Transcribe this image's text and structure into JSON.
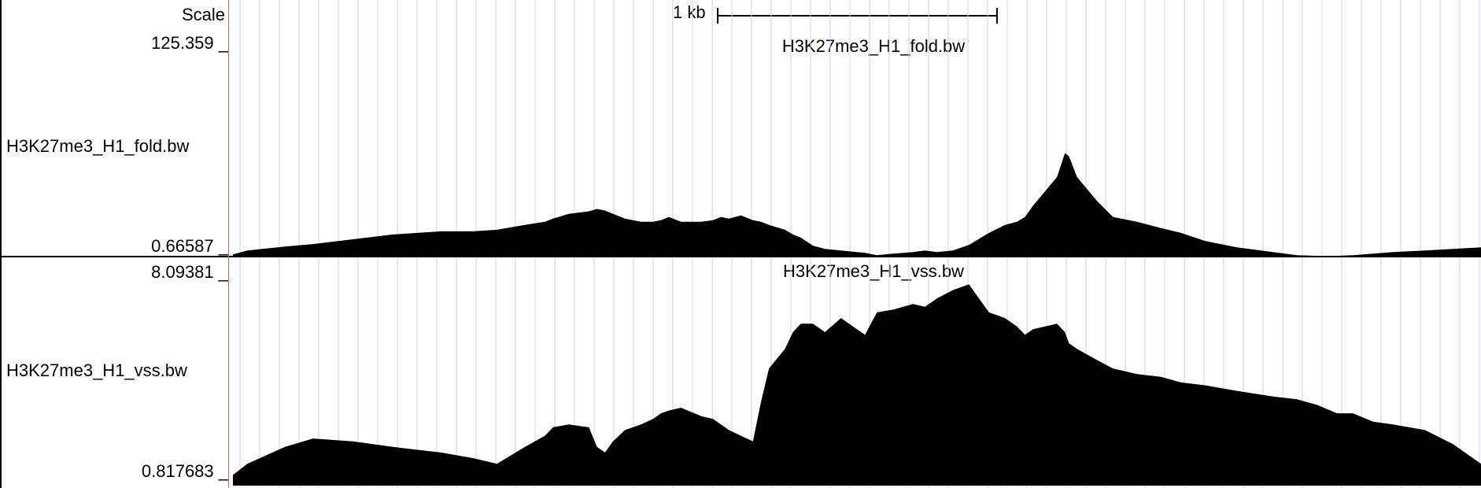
{
  "scale": {
    "label": "Scale",
    "bar_label": "1 kb"
  },
  "tracks": [
    {
      "name": "H3K27me3_H1_fold.bw",
      "title": "H3K27me3_H1_fold.bw",
      "max_label": "125.359 _",
      "min_label": "0.66587 _",
      "range": [
        0.66587,
        125.359
      ]
    },
    {
      "name": "H3K27me3_H1_vss.bw",
      "title": "H3K27me3_H1_vss.bw",
      "max_label": "8.09381 _",
      "min_label": "0.817683 _",
      "range": [
        0.817683,
        8.09381
      ]
    }
  ],
  "colors": {
    "signal": "#000000",
    "grid": "#ccccff",
    "left_border": "#e06666"
  },
  "chart_data": [
    {
      "type": "area",
      "title": "H3K27me3_H1_fold.bw",
      "x_unit": "bp",
      "x": [
        0,
        18,
        65,
        100,
        150,
        200,
        260,
        300,
        330,
        365,
        390,
        400,
        420,
        445,
        455,
        465,
        475,
        490,
        510,
        525,
        535,
        545,
        560,
        585,
        600,
        610,
        620,
        635,
        650,
        660,
        670,
        690,
        700,
        710,
        725,
        740,
        760,
        790,
        805,
        825,
        850,
        865,
        880,
        900,
        920,
        935,
        945,
        965,
        980,
        990,
        1000,
        1030,
        1040,
        1045,
        1055,
        1080,
        1100,
        1130,
        1160,
        1185,
        1215,
        1255,
        1300,
        1330,
        1355,
        1380,
        1400,
        1425,
        1450,
        1490,
        1525,
        1560
      ],
      "y": [
        1.5,
        4,
        6.5,
        8,
        11,
        14,
        16,
        16,
        17,
        20,
        22,
        24,
        27,
        28.5,
        30,
        29,
        27,
        24,
        22,
        22,
        23,
        25,
        22,
        22,
        23,
        25,
        24,
        26,
        23,
        22,
        20,
        17,
        14,
        12,
        7,
        5,
        4,
        2.5,
        1,
        2,
        3,
        4,
        3,
        4,
        7.5,
        12,
        15,
        20,
        22,
        25,
        32,
        50,
        65,
        63,
        50,
        35,
        25,
        22,
        18,
        15,
        10,
        6,
        3,
        1,
        0,
        0,
        1,
        2,
        3,
        4,
        5,
        6
      ]
    },
    {
      "type": "area",
      "title": "H3K27me3_H1_vss.bw",
      "x_unit": "bp",
      "x": [
        0,
        18,
        65,
        100,
        150,
        200,
        260,
        300,
        330,
        365,
        390,
        400,
        420,
        445,
        455,
        465,
        475,
        490,
        510,
        525,
        535,
        545,
        560,
        585,
        600,
        610,
        620,
        635,
        650,
        660,
        670,
        690,
        700,
        710,
        725,
        740,
        760,
        790,
        805,
        825,
        850,
        865,
        880,
        900,
        920,
        935,
        945,
        965,
        980,
        990,
        1000,
        1030,
        1040,
        1045,
        1055,
        1080,
        1100,
        1130,
        1160,
        1185,
        1215,
        1255,
        1300,
        1330,
        1355,
        1380,
        1400,
        1425,
        1450,
        1490,
        1525,
        1560
      ],
      "y": [
        1.2,
        1.6,
        2.2,
        2.5,
        2.4,
        2.2,
        2.0,
        1.8,
        1.6,
        2.2,
        2.6,
        2.9,
        3.0,
        2.9,
        2.2,
        2.0,
        2.4,
        2.8,
        3.0,
        3.2,
        3.4,
        3.5,
        3.6,
        3.3,
        3.2,
        3.0,
        2.8,
        2.6,
        2.4,
        3.8,
        5.0,
        5.7,
        6.3,
        6.6,
        6.6,
        6.3,
        6.8,
        6.2,
        7.0,
        7.1,
        7.3,
        7.2,
        7.5,
        7.8,
        8.0,
        7.4,
        7.0,
        6.8,
        6.5,
        6.2,
        6.4,
        6.6,
        6.3,
        5.9,
        5.7,
        5.3,
        5.0,
        4.8,
        4.7,
        4.5,
        4.4,
        4.2,
        4.0,
        3.9,
        3.7,
        3.4,
        3.4,
        3.1,
        3.0,
        2.8,
        2.3,
        1.6
      ]
    }
  ]
}
